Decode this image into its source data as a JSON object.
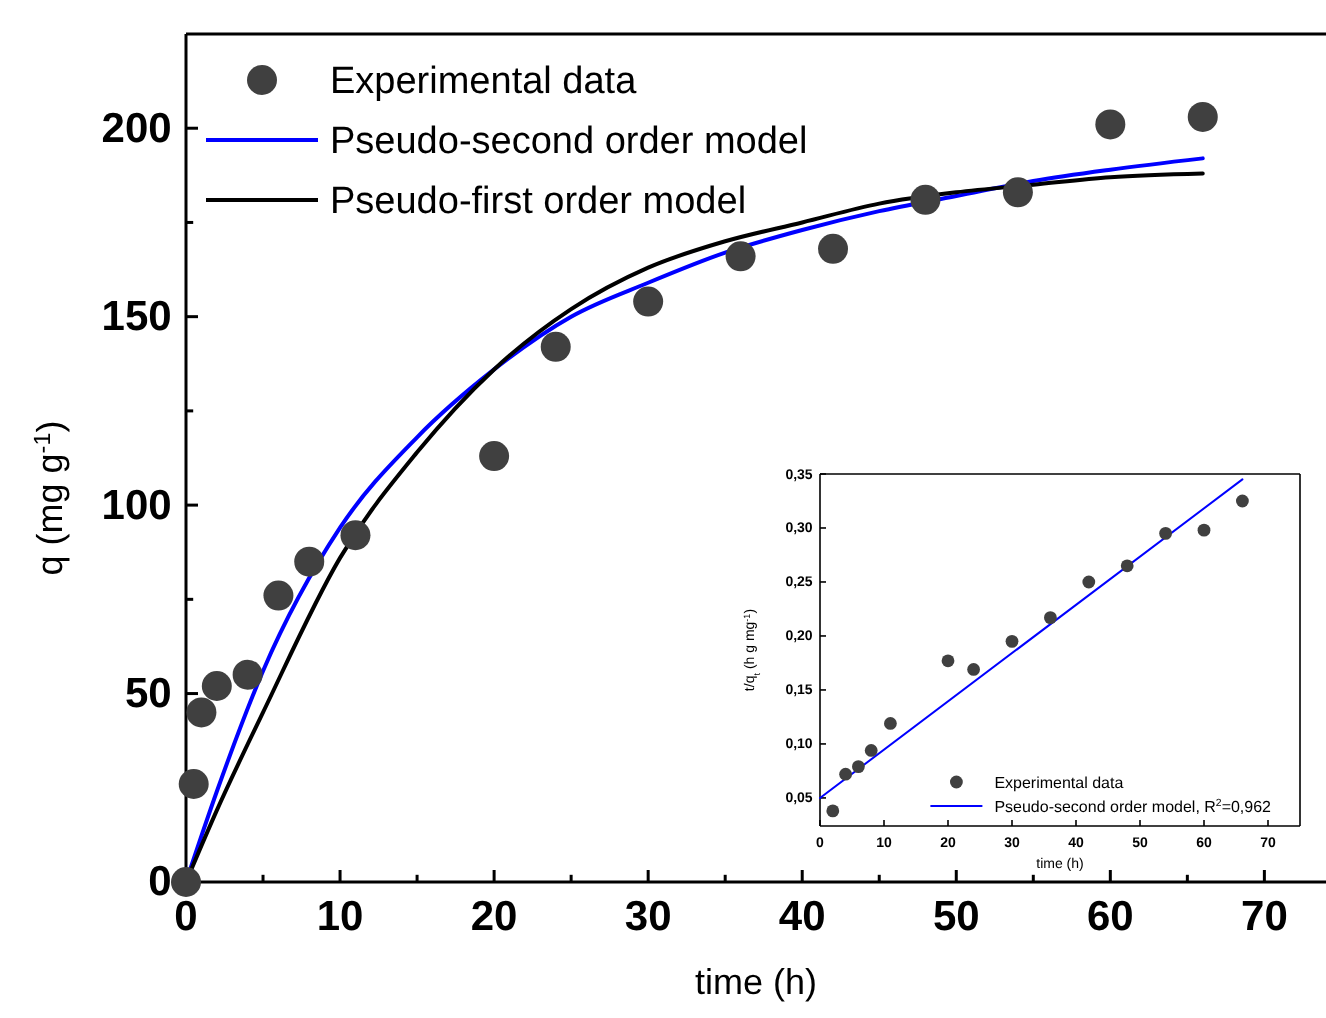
{
  "chart_data": [
    {
      "type": "scatter",
      "xlabel": "time (h)",
      "ylabel": "q (mg g$^{-1}$)",
      "xlim": [
        0,
        74
      ],
      "ylim": [
        0,
        225
      ],
      "xticks": [
        0,
        {
          "value": 5,
          "label": null
        },
        10,
        {
          "value": 15,
          "label": null
        },
        20,
        {
          "value": 25,
          "label": null
        },
        30,
        {
          "value": 35,
          "label": null
        },
        40,
        {
          "value": 45,
          "label": null
        },
        50,
        {
          "value": 55,
          "label": null
        },
        60,
        {
          "value": 65,
          "label": null
        },
        70
      ],
      "yticks": [
        0,
        {
          "value": 25,
          "label": null
        },
        50,
        {
          "value": 75,
          "label": null
        },
        100,
        {
          "value": 125,
          "label": null
        },
        150,
        {
          "value": 175,
          "label": null
        },
        200
      ],
      "legend": "top left",
      "grid": false,
      "series": [
        {
          "name": "Experimental data",
          "marker": "circle",
          "color": "#404040",
          "x": [
            0,
            0.5,
            1,
            2,
            4,
            6,
            8,
            11,
            20,
            24,
            30,
            36,
            42,
            48,
            54,
            60,
            66
          ],
          "values": [
            0,
            26,
            45,
            52,
            55,
            76,
            85,
            92,
            113,
            142,
            154,
            166,
            168,
            181,
            183,
            201,
            203
          ]
        },
        {
          "name": "Pseudo-second order model",
          "type": "line",
          "color": "#0000ff",
          "line_style": "solid",
          "x": [
            0,
            2,
            5,
            10,
            15,
            20,
            25,
            30,
            35,
            40,
            45,
            50,
            55,
            60,
            66
          ],
          "values": [
            0,
            24,
            56,
            94,
            118,
            136,
            150,
            159,
            167,
            173,
            178,
            182,
            186,
            189,
            192
          ]
        },
        {
          "name": "Pseudo-first order model",
          "type": "line",
          "color": "#000000",
          "line_style": "solid",
          "x": [
            0,
            2,
            5,
            10,
            15,
            20,
            25,
            30,
            35,
            40,
            45,
            50,
            55,
            60,
            66
          ],
          "values": [
            0,
            19,
            45,
            86,
            114,
            136,
            152,
            163,
            170,
            175,
            180,
            183,
            185,
            187,
            188
          ]
        }
      ]
    },
    {
      "type": "scatter",
      "xlabel": "time (h)",
      "ylabel": "t/q$_{t}$ (h g mg$^{-1}$)",
      "xlim": [
        0,
        75
      ],
      "ylim": [
        0.024,
        0.35
      ],
      "xticks": [
        0,
        10,
        20,
        30,
        40,
        50,
        60,
        70
      ],
      "yticks": [
        {
          "value": 0.05,
          "label": "0,05"
        },
        {
          "value": 0.1,
          "label": "0,10"
        },
        {
          "value": 0.15,
          "label": "0,15"
        },
        {
          "value": 0.2,
          "label": "0,20"
        },
        {
          "value": 0.25,
          "label": "0,25"
        },
        {
          "value": 0.3,
          "label": "0,30"
        },
        {
          "value": 0.35,
          "label": "0,35"
        }
      ],
      "legend": "bottom right",
      "grid": false,
      "series": [
        {
          "name": "Experimental data",
          "marker": "circle",
          "color": "#404040",
          "x": [
            2,
            4,
            6,
            8,
            11,
            20,
            24,
            30,
            36,
            42,
            48,
            54,
            60,
            66
          ],
          "values": [
            0.038,
            0.072,
            0.079,
            0.094,
            0.119,
            0.177,
            0.169,
            0.195,
            0.217,
            0.25,
            0.265,
            0.295,
            0.298,
            0.325
          ]
        },
        {
          "name": "Pseudo-second order model, R$^{2}$=0,962",
          "type": "line",
          "color": "#0000ff",
          "line_style": "solid",
          "x": [
            0,
            66
          ],
          "values": [
            0.05,
            0.345
          ]
        }
      ]
    }
  ]
}
